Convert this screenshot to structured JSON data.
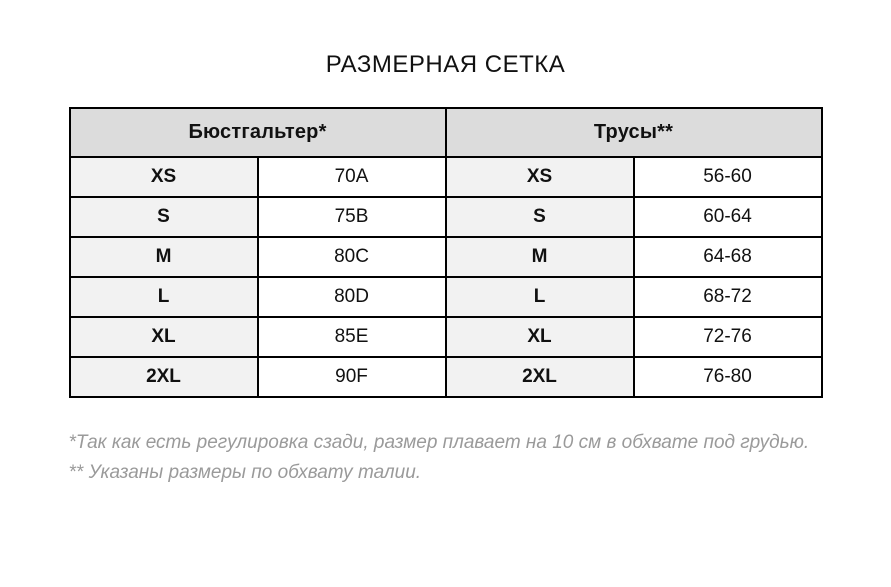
{
  "title": "РАЗМЕРНАЯ СЕТКА",
  "table": {
    "group_headers": [
      {
        "label": "Бюстгальтер*"
      },
      {
        "label": "Трусы**"
      }
    ],
    "rows": [
      {
        "bra_size": "XS",
        "bra_value": "70A",
        "panty_size": "XS",
        "panty_value": "56-60"
      },
      {
        "bra_size": "S",
        "bra_value": "75B",
        "panty_size": "S",
        "panty_value": "60-64"
      },
      {
        "bra_size": "M",
        "bra_value": "80C",
        "panty_size": "M",
        "panty_value": "64-68"
      },
      {
        "bra_size": "L",
        "bra_value": "80D",
        "panty_size": "L",
        "panty_value": "68-72"
      },
      {
        "bra_size": "XL",
        "bra_value": "85E",
        "panty_size": "XL",
        "panty_value": "72-76"
      },
      {
        "bra_size": "2XL",
        "bra_value": "90F",
        "panty_size": "2XL",
        "panty_value": "76-80"
      }
    ]
  },
  "footnotes": [
    "*Так как есть регулировка сзади, размер плавает на 10 см в обхвате под грудью.",
    "** Указаны размеры по обхвату талии."
  ],
  "colors": {
    "header_bg": "#dcdcdc",
    "size_cell_bg": "#f2f2f2",
    "value_cell_bg": "#ffffff",
    "border": "#000000",
    "text": "#111111",
    "footnote_text": "#9a9a9a"
  }
}
